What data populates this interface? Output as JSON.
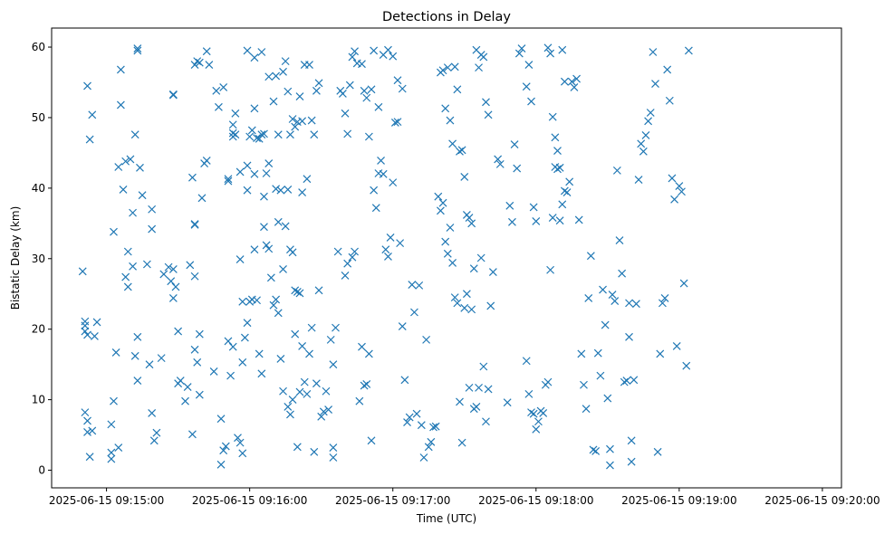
{
  "chart_data": {
    "type": "scatter",
    "title": "Detections in Delay",
    "xlabel": "Time (UTC)",
    "ylabel": "Bistatic Delay (km)",
    "x_start": "2025-06-15 09:14:50",
    "x_ticks": [
      "2025-06-15 09:15:00",
      "2025-06-15 09:16:00",
      "2025-06-15 09:17:00",
      "2025-06-15 09:18:00",
      "2025-06-15 09:19:00",
      "2025-06-15 09:20:00"
    ],
    "xlim": [
      "2025-06-15 09:14:37",
      "2025-06-15 09:20:08"
    ],
    "yticks": [
      "0",
      "10",
      "20",
      "30",
      "40",
      "50",
      "60"
    ],
    "ylim": [
      -2.5,
      62.7
    ],
    "grid": false,
    "marker": "x",
    "color": "#1f77b4",
    "points": [
      [
        0,
        28.2
      ],
      [
        1,
        19.7
      ],
      [
        1,
        21.1
      ],
      [
        1,
        20.5
      ],
      [
        2,
        19.2
      ],
      [
        1,
        8.2
      ],
      [
        2,
        7.0
      ],
      [
        2,
        5.4
      ],
      [
        3,
        1.9
      ],
      [
        4,
        5.6
      ],
      [
        5,
        19.0
      ],
      [
        6,
        21.0
      ],
      [
        2,
        54.5
      ],
      [
        3,
        46.9
      ],
      [
        4,
        50.4
      ],
      [
        13,
        33.8
      ],
      [
        14,
        16.7
      ],
      [
        13,
        9.8
      ],
      [
        12,
        6.5
      ],
      [
        12,
        2.5
      ],
      [
        12,
        1.6
      ],
      [
        15,
        3.2
      ],
      [
        16,
        56.8
      ],
      [
        16,
        51.8
      ],
      [
        17,
        39.8
      ],
      [
        15,
        43.0
      ],
      [
        18,
        43.8
      ],
      [
        20,
        44.1
      ],
      [
        21,
        36.5
      ],
      [
        19,
        31.0
      ],
      [
        18,
        27.4
      ],
      [
        19,
        26.0
      ],
      [
        21,
        28.9
      ],
      [
        22,
        16.2
      ],
      [
        23,
        12.7
      ],
      [
        23,
        18.9
      ],
      [
        22,
        47.6
      ],
      [
        24,
        42.9
      ],
      [
        25,
        39.0
      ],
      [
        23,
        59.5
      ],
      [
        23,
        59.8
      ],
      [
        27,
        29.2
      ],
      [
        28,
        15.0
      ],
      [
        29,
        37.0
      ],
      [
        29,
        34.2
      ],
      [
        29,
        8.1
      ],
      [
        30,
        4.2
      ],
      [
        31,
        5.3
      ],
      [
        33,
        15.9
      ],
      [
        34,
        27.8
      ],
      [
        36,
        28.8
      ],
      [
        38,
        28.5
      ],
      [
        37,
        26.8
      ],
      [
        38,
        24.4
      ],
      [
        39,
        26.0
      ],
      [
        40,
        19.7
      ],
      [
        41,
        12.7
      ],
      [
        40,
        12.3
      ],
      [
        43,
        9.8
      ],
      [
        44,
        11.8
      ],
      [
        46,
        5.1
      ],
      [
        45,
        29.1
      ],
      [
        47,
        27.5
      ],
      [
        47,
        17.1
      ],
      [
        48,
        15.3
      ],
      [
        49,
        19.3
      ],
      [
        49,
        10.7
      ],
      [
        50,
        38.6
      ],
      [
        51,
        43.5
      ],
      [
        52,
        43.9
      ],
      [
        46,
        41.5
      ],
      [
        47,
        34.8
      ],
      [
        47,
        34.9
      ],
      [
        38,
        53.2
      ],
      [
        38,
        53.3
      ],
      [
        47,
        57.5
      ],
      [
        48,
        58.0
      ],
      [
        49,
        57.8
      ],
      [
        52,
        59.4
      ],
      [
        53,
        57.5
      ],
      [
        55,
        14.0
      ],
      [
        58,
        7.3
      ],
      [
        58,
        0.8
      ],
      [
        59,
        2.8
      ],
      [
        60,
        3.4
      ],
      [
        61,
        18.3
      ],
      [
        62,
        13.4
      ],
      [
        63,
        17.5
      ],
      [
        65,
        4.6
      ],
      [
        66,
        3.9
      ],
      [
        67,
        2.4
      ],
      [
        67,
        15.3
      ],
      [
        68,
        18.8
      ],
      [
        69,
        20.9
      ],
      [
        70,
        23.9
      ],
      [
        71,
        24.2
      ],
      [
        72,
        31.3
      ],
      [
        73,
        24.1
      ],
      [
        74,
        16.5
      ],
      [
        75,
        13.7
      ],
      [
        76,
        34.5
      ],
      [
        77,
        31.9
      ],
      [
        78,
        31.4
      ],
      [
        79,
        27.3
      ],
      [
        80,
        23.4
      ],
      [
        81,
        24.2
      ],
      [
        82,
        22.3
      ],
      [
        83,
        15.8
      ],
      [
        84,
        11.2
      ],
      [
        86,
        9.0
      ],
      [
        87,
        7.9
      ],
      [
        88,
        10.0
      ],
      [
        89,
        19.3
      ],
      [
        90,
        3.3
      ],
      [
        91,
        11.1
      ],
      [
        92,
        17.6
      ],
      [
        93,
        12.5
      ],
      [
        94,
        10.8
      ],
      [
        95,
        16.5
      ],
      [
        96,
        20.2
      ],
      [
        97,
        2.6
      ],
      [
        98,
        12.3
      ],
      [
        99,
        25.5
      ],
      [
        100,
        7.6
      ],
      [
        101,
        8.3
      ],
      [
        102,
        11.2
      ],
      [
        103,
        8.6
      ],
      [
        104,
        18.5
      ],
      [
        105,
        15.0
      ],
      [
        105,
        3.2
      ],
      [
        105,
        1.8
      ],
      [
        106,
        20.2
      ],
      [
        70,
        47.3
      ],
      [
        71,
        48.2
      ],
      [
        72,
        51.3
      ],
      [
        73,
        47.1
      ],
      [
        75,
        47.6
      ],
      [
        76,
        47.7
      ],
      [
        78,
        55.8
      ],
      [
        80,
        52.3
      ],
      [
        81,
        55.9
      ],
      [
        82,
        47.6
      ],
      [
        84,
        56.5
      ],
      [
        85,
        58.0
      ],
      [
        86,
        53.7
      ],
      [
        87,
        47.6
      ],
      [
        88,
        49.8
      ],
      [
        89,
        48.7
      ],
      [
        90,
        49.4
      ],
      [
        91,
        53.0
      ],
      [
        92,
        49.5
      ],
      [
        93,
        57.5
      ],
      [
        95,
        57.5
      ],
      [
        96,
        49.6
      ],
      [
        97,
        47.6
      ],
      [
        98,
        53.8
      ],
      [
        99,
        54.9
      ],
      [
        69,
        59.5
      ],
      [
        72,
        58.5
      ],
      [
        75,
        59.3
      ],
      [
        56,
        53.8
      ],
      [
        57,
        51.5
      ],
      [
        59,
        54.3
      ],
      [
        61,
        41.3
      ],
      [
        61,
        41.0
      ],
      [
        63,
        47.3
      ],
      [
        63,
        47.8
      ],
      [
        63,
        49.0
      ],
      [
        64,
        50.6
      ],
      [
        64,
        47.6
      ],
      [
        66,
        42.3
      ],
      [
        66,
        29.9
      ],
      [
        67,
        23.9
      ],
      [
        69,
        43.2
      ],
      [
        69,
        39.7
      ],
      [
        72,
        42.0
      ],
      [
        74,
        47.0
      ],
      [
        76,
        38.8
      ],
      [
        77,
        42.1
      ],
      [
        78,
        43.5
      ],
      [
        81,
        39.9
      ],
      [
        82,
        35.2
      ],
      [
        83,
        39.7
      ],
      [
        84,
        28.5
      ],
      [
        85,
        34.6
      ],
      [
        86,
        39.8
      ],
      [
        87,
        31.3
      ],
      [
        88,
        30.9
      ],
      [
        89,
        25.5
      ],
      [
        90,
        25.3
      ],
      [
        91,
        25.1
      ],
      [
        92,
        39.4
      ],
      [
        94,
        41.3
      ],
      [
        107,
        31.0
      ],
      [
        110,
        27.6
      ],
      [
        111,
        29.3
      ],
      [
        113,
        30.2
      ],
      [
        114,
        31.0
      ],
      [
        116,
        9.8
      ],
      [
        117,
        17.5
      ],
      [
        118,
        12.0
      ],
      [
        119,
        12.2
      ],
      [
        120,
        16.5
      ],
      [
        121,
        4.2
      ],
      [
        122,
        39.7
      ],
      [
        123,
        37.2
      ],
      [
        124,
        42.1
      ],
      [
        125,
        43.9
      ],
      [
        126,
        42.0
      ],
      [
        127,
        31.3
      ],
      [
        128,
        30.3
      ],
      [
        129,
        33.0
      ],
      [
        130,
        40.8
      ],
      [
        131,
        49.3
      ],
      [
        132,
        49.4
      ],
      [
        133,
        32.2
      ],
      [
        134,
        20.4
      ],
      [
        135,
        12.8
      ],
      [
        136,
        6.8
      ],
      [
        137,
        7.5
      ],
      [
        138,
        26.3
      ],
      [
        139,
        22.4
      ],
      [
        140,
        8.0
      ],
      [
        141,
        26.2
      ],
      [
        142,
        6.4
      ],
      [
        143,
        1.8
      ],
      [
        144,
        18.5
      ],
      [
        145,
        3.3
      ],
      [
        146,
        4.0
      ],
      [
        147,
        6.1
      ],
      [
        148,
        6.2
      ],
      [
        149,
        38.8
      ],
      [
        150,
        36.8
      ],
      [
        151,
        37.9
      ],
      [
        152,
        32.4
      ],
      [
        153,
        30.7
      ],
      [
        154,
        34.4
      ],
      [
        155,
        29.4
      ],
      [
        156,
        24.5
      ],
      [
        157,
        23.7
      ],
      [
        158,
        9.7
      ],
      [
        159,
        3.9
      ],
      [
        160,
        23.0
      ],
      [
        161,
        25.0
      ],
      [
        162,
        11.7
      ],
      [
        163,
        22.8
      ],
      [
        164,
        8.7
      ],
      [
        165,
        9.0
      ],
      [
        166,
        11.7
      ],
      [
        167,
        30.1
      ],
      [
        168,
        14.7
      ],
      [
        169,
        6.9
      ],
      [
        170,
        11.5
      ],
      [
        171,
        23.3
      ],
      [
        172,
        28.1
      ],
      [
        174,
        44.1
      ],
      [
        175,
        43.4
      ],
      [
        178,
        9.6
      ],
      [
        179,
        37.5
      ],
      [
        180,
        35.2
      ],
      [
        181,
        46.2
      ],
      [
        182,
        42.8
      ],
      [
        183,
        59.1
      ],
      [
        184,
        59.8
      ],
      [
        186,
        54.4
      ],
      [
        187,
        57.5
      ],
      [
        188,
        52.3
      ],
      [
        189,
        37.3
      ],
      [
        190,
        35.3
      ],
      [
        186,
        15.5
      ],
      [
        187,
        10.8
      ],
      [
        188,
        8.2
      ],
      [
        189,
        8.0
      ],
      [
        190,
        5.8
      ],
      [
        191,
        6.9
      ],
      [
        192,
        8.4
      ],
      [
        193,
        8.1
      ],
      [
        194,
        12.1
      ],
      [
        195,
        12.5
      ],
      [
        196,
        28.4
      ],
      [
        197,
        35.8
      ],
      [
        198,
        43.0
      ],
      [
        199,
        42.7
      ],
      [
        200,
        35.4
      ],
      [
        201,
        37.7
      ],
      [
        202,
        39.6
      ],
      [
        203,
        39.4
      ],
      [
        204,
        40.9
      ],
      [
        205,
        55.1
      ],
      [
        206,
        54.3
      ],
      [
        207,
        55.5
      ],
      [
        208,
        35.5
      ],
      [
        209,
        16.5
      ],
      [
        210,
        12.1
      ],
      [
        211,
        8.7
      ],
      [
        212,
        24.4
      ],
      [
        213,
        30.4
      ],
      [
        214,
        2.9
      ],
      [
        215,
        2.7
      ],
      [
        216,
        16.6
      ],
      [
        217,
        13.4
      ],
      [
        218,
        25.6
      ],
      [
        219,
        20.6
      ],
      [
        220,
        10.2
      ],
      [
        221,
        3.0
      ],
      [
        221,
        0.7
      ],
      [
        222,
        24.9
      ],
      [
        223,
        24.0
      ],
      [
        224,
        42.5
      ],
      [
        225,
        32.6
      ],
      [
        226,
        27.9
      ],
      [
        227,
        12.5
      ],
      [
        228,
        12.7
      ],
      [
        229,
        18.9
      ],
      [
        229,
        23.7
      ],
      [
        230,
        4.2
      ],
      [
        230,
        1.2
      ],
      [
        231,
        12.8
      ],
      [
        232,
        23.6
      ],
      [
        233,
        41.2
      ],
      [
        234,
        46.3
      ],
      [
        235,
        45.2
      ],
      [
        236,
        47.5
      ],
      [
        237,
        49.5
      ],
      [
        238,
        50.7
      ],
      [
        239,
        59.3
      ],
      [
        240,
        54.8
      ],
      [
        241,
        2.6
      ],
      [
        242,
        16.5
      ],
      [
        243,
        23.7
      ],
      [
        244,
        24.4
      ],
      [
        245,
        56.8
      ],
      [
        246,
        52.4
      ],
      [
        247,
        41.4
      ],
      [
        248,
        38.4
      ],
      [
        249,
        17.6
      ],
      [
        250,
        40.3
      ],
      [
        251,
        39.5
      ],
      [
        252,
        26.5
      ],
      [
        253,
        14.8
      ],
      [
        254,
        59.5
      ],
      [
        150,
        56.4
      ],
      [
        151,
        56.7
      ],
      [
        152,
        51.3
      ],
      [
        153,
        57.1
      ],
      [
        154,
        49.6
      ],
      [
        155,
        46.3
      ],
      [
        156,
        57.2
      ],
      [
        157,
        54.0
      ],
      [
        158,
        45.2
      ],
      [
        159,
        45.4
      ],
      [
        160,
        41.6
      ],
      [
        161,
        36.2
      ],
      [
        162,
        35.8
      ],
      [
        163,
        35.0
      ],
      [
        164,
        28.6
      ],
      [
        165,
        59.6
      ],
      [
        166,
        57.1
      ],
      [
        167,
        58.9
      ],
      [
        168,
        58.6
      ],
      [
        169,
        52.2
      ],
      [
        170,
        50.4
      ],
      [
        195,
        59.9
      ],
      [
        196,
        59.1
      ],
      [
        197,
        50.1
      ],
      [
        198,
        47.2
      ],
      [
        199,
        45.3
      ],
      [
        200,
        42.9
      ],
      [
        201,
        59.6
      ],
      [
        202,
        55.1
      ],
      [
        108,
        53.8
      ],
      [
        109,
        53.4
      ],
      [
        110,
        50.6
      ],
      [
        111,
        47.7
      ],
      [
        112,
        54.6
      ],
      [
        113,
        58.6
      ],
      [
        114,
        59.4
      ],
      [
        115,
        57.7
      ],
      [
        117,
        57.6
      ],
      [
        118,
        53.8
      ],
      [
        119,
        52.8
      ],
      [
        120,
        47.3
      ],
      [
        121,
        54.0
      ],
      [
        122,
        59.5
      ],
      [
        124,
        51.5
      ],
      [
        126,
        58.9
      ],
      [
        128,
        59.6
      ],
      [
        130,
        58.7
      ],
      [
        132,
        55.3
      ],
      [
        134,
        54.1
      ]
    ]
  }
}
